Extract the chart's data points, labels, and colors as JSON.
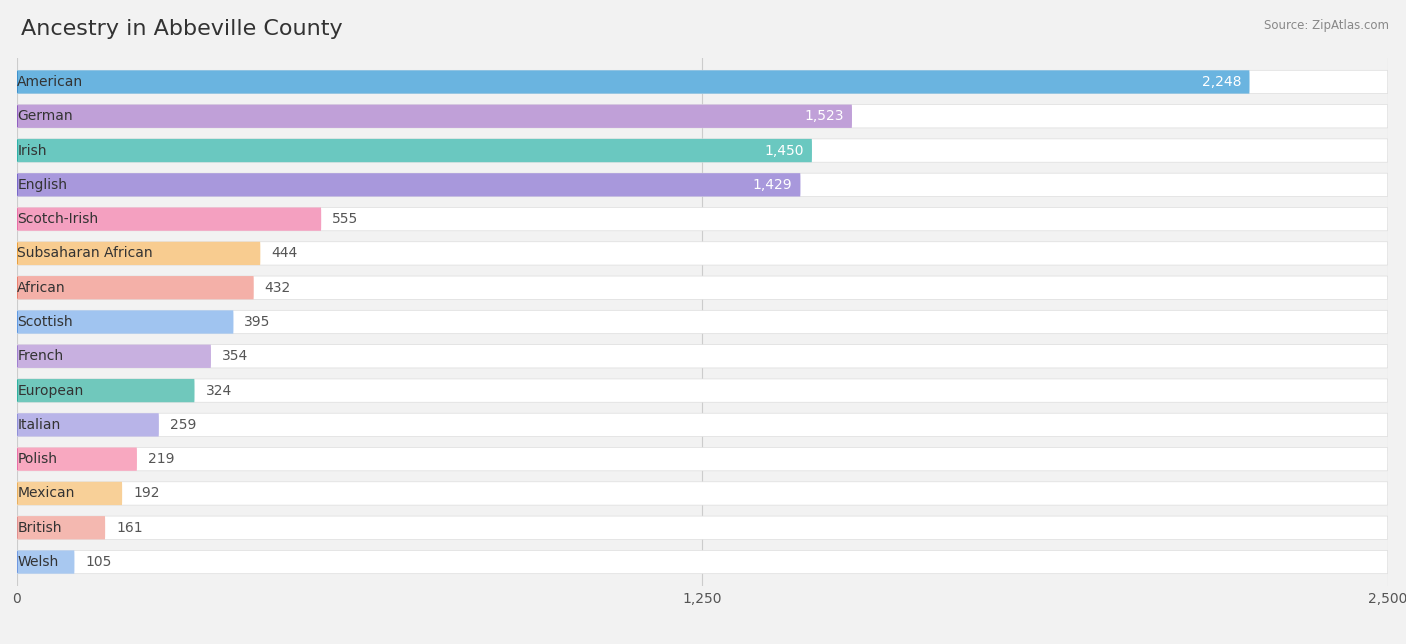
{
  "title": "Ancestry in Abbeville County",
  "source": "Source: ZipAtlas.com",
  "categories": [
    "American",
    "German",
    "Irish",
    "English",
    "Scotch-Irish",
    "Subsaharan African",
    "African",
    "Scottish",
    "French",
    "European",
    "Italian",
    "Polish",
    "Mexican",
    "British",
    "Welsh"
  ],
  "values": [
    2248,
    1523,
    1450,
    1429,
    555,
    444,
    432,
    395,
    354,
    324,
    259,
    219,
    192,
    161,
    105
  ],
  "bar_colors": [
    "#6ab4e0",
    "#c0a0d8",
    "#6ac8c0",
    "#a898dc",
    "#f4a0c0",
    "#f8cc90",
    "#f4b0a8",
    "#a0c4f0",
    "#c8b0e0",
    "#70c8bc",
    "#b8b4e8",
    "#f8a8c0",
    "#f8d098",
    "#f4b8b0",
    "#a8c8f0"
  ],
  "circle_colors": [
    "#4090cc",
    "#9060c0",
    "#30b0a8",
    "#7868c8",
    "#e870a8",
    "#e8a040",
    "#e88070",
    "#6098e0",
    "#a080d0",
    "#30b0a0",
    "#9090d8",
    "#e870a8",
    "#e8b060",
    "#e09090",
    "#7098e0"
  ],
  "bg_color": "#f2f2f2",
  "row_bg_color": "#ffffff",
  "xlim": [
    0,
    2500
  ],
  "xticks": [
    0,
    1250,
    2500
  ],
  "title_fontsize": 16,
  "label_fontsize": 10,
  "value_fontsize": 10
}
